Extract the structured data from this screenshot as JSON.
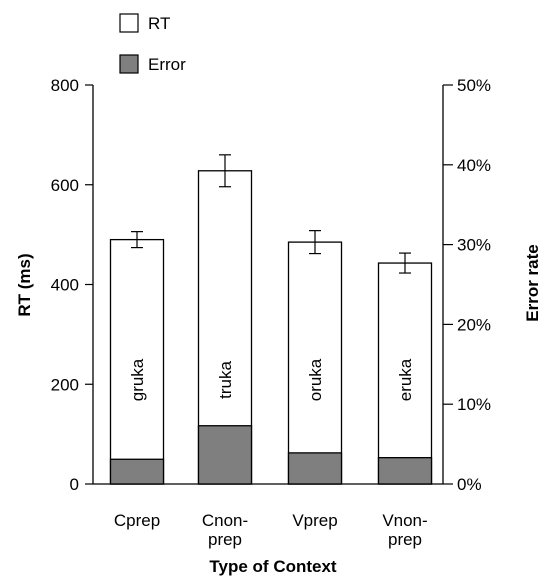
{
  "chart_data": {
    "type": "bar",
    "categories": [
      [
        "Cprep"
      ],
      [
        "Cnon-",
        "prep"
      ],
      [
        "Vprep"
      ],
      [
        "Vnon-",
        "prep"
      ]
    ],
    "bar_labels": [
      "gruka",
      "truka",
      "oruka",
      "eruka"
    ],
    "series": [
      {
        "name": "RT",
        "values": [
          490,
          628,
          485,
          443
        ],
        "errors": [
          16,
          32,
          23,
          20
        ],
        "color": "#ffffff"
      },
      {
        "name": "Error",
        "values": [
          3.1,
          7.3,
          3.9,
          3.3
        ],
        "color": "#7f7f7f"
      }
    ],
    "xlabel": "Type of Context",
    "ylabel": "RT (ms)",
    "ylabel_right": "Error rate",
    "ylim": [
      0,
      800
    ],
    "ylim_right": [
      0,
      50
    ],
    "yticks": [
      "0",
      "200",
      "400",
      "600",
      "800"
    ],
    "yticks_right": [
      "0%",
      "10%",
      "20%",
      "30%",
      "40%",
      "50%"
    ],
    "legend_placement": "top-left",
    "grid": false
  }
}
